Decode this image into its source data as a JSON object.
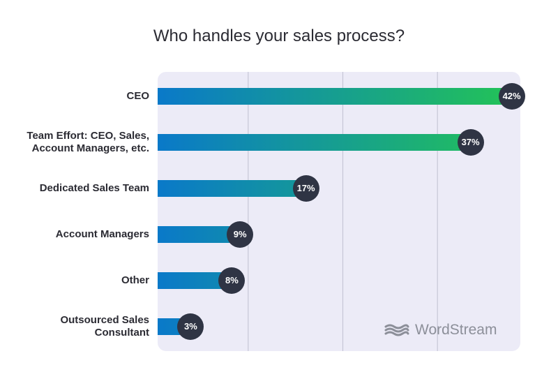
{
  "chart_data": {
    "type": "bar",
    "orientation": "horizontal",
    "title": "Who handles your sales process?",
    "categories": [
      [
        "CEO"
      ],
      [
        "Team Effort: CEO, Sales,",
        "Account Managers, etc."
      ],
      [
        "Dedicated Sales Team"
      ],
      [
        "Account Managers"
      ],
      [
        "Other"
      ],
      [
        "Outsourced Sales",
        "Consultant"
      ]
    ],
    "values": [
      42,
      37,
      17,
      9,
      8,
      3
    ],
    "value_labels": [
      "42%",
      "37%",
      "17%",
      "9%",
      "8%",
      "3%"
    ],
    "xlim": [
      0,
      45
    ],
    "gridlines_at": [
      11,
      22.5,
      34
    ],
    "grid": true,
    "xlabel": "",
    "ylabel": "",
    "colors": {
      "gradient_start": "#0a79c9",
      "gradient_end": "#22c15a",
      "badge": "#2f3444",
      "plot_background": "#ecebf7",
      "gridline": "#c6c6d6"
    }
  },
  "watermark": {
    "text": "WordStream",
    "icon": "wordstream-waves-icon"
  }
}
